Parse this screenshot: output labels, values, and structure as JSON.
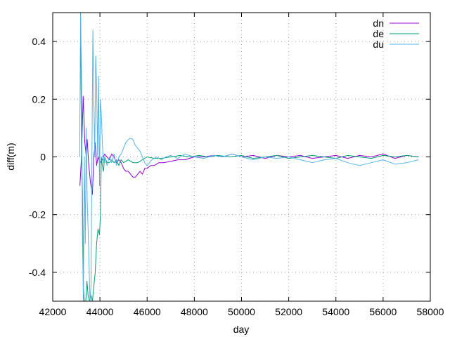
{
  "chart_data": {
    "type": "line",
    "title": "",
    "xlabel": "day",
    "ylabel": "diff(m)",
    "xlim": [
      42000,
      58000
    ],
    "ylim": [
      -0.5,
      0.5
    ],
    "xticks": [
      42000,
      44000,
      46000,
      48000,
      50000,
      52000,
      54000,
      56000,
      58000
    ],
    "xtick_labels": [
      "42000",
      "44000",
      "46000",
      "48000",
      "50000",
      "52000",
      "54000",
      "56000",
      "58000"
    ],
    "yticks": [
      -0.4,
      -0.2,
      0,
      0.2,
      0.4
    ],
    "ytick_labels": [
      "-0.4",
      "-0.2",
      "0",
      "0.2",
      "0.4"
    ],
    "grid": true,
    "legend_position": "top-right",
    "series": [
      {
        "name": "dn",
        "color": "#9400d3",
        "points": [
          [
            43150,
            -0.1
          ],
          [
            43220,
            0.0
          ],
          [
            43290,
            0.21
          ],
          [
            43360,
            0.05
          ],
          [
            43420,
            0.0
          ],
          [
            43460,
            0.06
          ],
          [
            43520,
            -0.02
          ],
          [
            43600,
            -0.09
          ],
          [
            43680,
            -0.13
          ],
          [
            43740,
            0.0
          ],
          [
            43800,
            0.05
          ],
          [
            43860,
            -0.03
          ],
          [
            43920,
            0.0
          ],
          [
            44000,
            -0.02
          ],
          [
            44100,
            -0.01
          ],
          [
            44200,
            0.01
          ],
          [
            44300,
            0.0
          ],
          [
            44400,
            -0.01
          ],
          [
            44500,
            0.01
          ],
          [
            44600,
            0.0
          ],
          [
            44700,
            -0.02
          ],
          [
            44800,
            -0.01
          ],
          [
            44900,
            -0.02
          ],
          [
            45000,
            -0.04
          ],
          [
            45100,
            -0.05
          ],
          [
            45200,
            -0.05
          ],
          [
            45300,
            -0.06
          ],
          [
            45400,
            -0.07
          ],
          [
            45500,
            -0.07
          ],
          [
            45600,
            -0.06
          ],
          [
            45700,
            -0.05
          ],
          [
            45800,
            -0.06
          ],
          [
            45900,
            -0.04
          ],
          [
            46000,
            -0.04
          ],
          [
            46150,
            -0.03
          ],
          [
            46300,
            -0.03
          ],
          [
            46500,
            -0.02
          ],
          [
            46700,
            -0.02
          ],
          [
            47000,
            -0.015
          ],
          [
            47300,
            -0.01
          ],
          [
            47600,
            -0.01
          ],
          [
            48000,
            0.0
          ],
          [
            48400,
            0.0
          ],
          [
            48800,
            0.005
          ],
          [
            49200,
            0.0
          ],
          [
            49600,
            0.01
          ],
          [
            50000,
            0.0
          ],
          [
            50500,
            0.005
          ],
          [
            51000,
            -0.005
          ],
          [
            51500,
            0.005
          ],
          [
            52000,
            0.0
          ],
          [
            52500,
            0.005
          ],
          [
            53000,
            -0.005
          ],
          [
            53500,
            0.0
          ],
          [
            54000,
            0.005
          ],
          [
            54500,
            -0.005
          ],
          [
            55000,
            0.005
          ],
          [
            55500,
            0.0
          ],
          [
            56000,
            0.01
          ],
          [
            56500,
            -0.005
          ],
          [
            57000,
            0.005
          ],
          [
            57500,
            0.0
          ]
        ]
      },
      {
        "name": "de",
        "color": "#009e73",
        "points": [
          [
            43180,
            0.5
          ],
          [
            43220,
            0.0
          ],
          [
            43260,
            -0.12
          ],
          [
            43300,
            -0.45
          ],
          [
            43340,
            -0.5
          ],
          [
            43400,
            -0.5
          ],
          [
            43450,
            -0.43
          ],
          [
            43500,
            -0.48
          ],
          [
            43560,
            -0.5
          ],
          [
            43620,
            -0.48
          ],
          [
            43680,
            -0.5
          ],
          [
            43740,
            -0.45
          ],
          [
            43800,
            -0.4
          ],
          [
            43860,
            -0.3
          ],
          [
            43920,
            -0.25
          ],
          [
            43980,
            -0.27
          ],
          [
            44020,
            -0.2
          ],
          [
            44060,
            0.0
          ],
          [
            44100,
            -0.03
          ],
          [
            44150,
            -0.05
          ],
          [
            44200,
            0.0
          ],
          [
            44300,
            -0.02
          ],
          [
            44400,
            -0.02
          ],
          [
            44500,
            -0.01
          ],
          [
            44600,
            -0.02
          ],
          [
            44700,
            -0.01
          ],
          [
            44800,
            -0.03
          ],
          [
            44900,
            -0.01
          ],
          [
            45000,
            -0.02
          ],
          [
            45200,
            -0.01
          ],
          [
            45400,
            -0.02
          ],
          [
            45600,
            -0.02
          ],
          [
            45800,
            -0.01
          ],
          [
            46000,
            0.0
          ],
          [
            46300,
            -0.005
          ],
          [
            46600,
            -0.005
          ],
          [
            47000,
            0.0
          ],
          [
            47400,
            0.005
          ],
          [
            47800,
            0.0
          ],
          [
            48200,
            0.005
          ],
          [
            48600,
            0.0
          ],
          [
            49000,
            0.005
          ],
          [
            49500,
            0.0
          ],
          [
            50000,
            0.005
          ],
          [
            50500,
            -0.005
          ],
          [
            51000,
            0.0
          ],
          [
            51500,
            0.005
          ],
          [
            52000,
            -0.005
          ],
          [
            52500,
            0.0
          ],
          [
            53000,
            0.005
          ],
          [
            53500,
            0.0
          ],
          [
            54000,
            -0.005
          ],
          [
            54500,
            0.005
          ],
          [
            55000,
            0.0
          ],
          [
            55500,
            -0.005
          ],
          [
            56000,
            0.005
          ],
          [
            56500,
            0.0
          ],
          [
            57000,
            0.005
          ],
          [
            57500,
            0.0
          ]
        ]
      },
      {
        "name": "du",
        "color": "#56b4e9",
        "points": [
          [
            43140,
            0.0
          ],
          [
            43180,
            0.5
          ],
          [
            43220,
            0.3
          ],
          [
            43260,
            -0.3
          ],
          [
            43300,
            -0.5
          ],
          [
            43340,
            0.0
          ],
          [
            43380,
            -0.3
          ],
          [
            43420,
            0.1
          ],
          [
            43460,
            -0.15
          ],
          [
            43500,
            -0.25
          ],
          [
            43540,
            -0.38
          ],
          [
            43580,
            -0.5
          ],
          [
            43620,
            -0.45
          ],
          [
            43660,
            0.0
          ],
          [
            43700,
            0.44
          ],
          [
            43740,
            0.2
          ],
          [
            43780,
            0.0
          ],
          [
            43820,
            0.35
          ],
          [
            43860,
            0.25
          ],
          [
            43900,
            0.0
          ],
          [
            43940,
            0.28
          ],
          [
            43980,
            -0.1
          ],
          [
            44020,
            0.2
          ],
          [
            44060,
            0.15
          ],
          [
            44100,
            0.05
          ],
          [
            44150,
            -0.02
          ],
          [
            44200,
            0.0
          ],
          [
            44300,
            -0.03
          ],
          [
            44400,
            0.0
          ],
          [
            44500,
            -0.02
          ],
          [
            44600,
            0.01
          ],
          [
            44700,
            -0.03
          ],
          [
            44800,
            0.0
          ],
          [
            44900,
            0.01
          ],
          [
            45000,
            0.03
          ],
          [
            45100,
            0.05
          ],
          [
            45200,
            0.06
          ],
          [
            45300,
            0.065
          ],
          [
            45400,
            0.06
          ],
          [
            45500,
            0.04
          ],
          [
            45600,
            0.03
          ],
          [
            45700,
            0.02
          ],
          [
            45800,
            0.0
          ],
          [
            45900,
            -0.02
          ],
          [
            46000,
            -0.03
          ],
          [
            46200,
            -0.01
          ],
          [
            46400,
            0.0
          ],
          [
            46600,
            -0.01
          ],
          [
            46800,
            0.0
          ],
          [
            47000,
            0.005
          ],
          [
            47300,
            -0.005
          ],
          [
            47600,
            0.01
          ],
          [
            48000,
            0.0
          ],
          [
            48400,
            -0.005
          ],
          [
            48800,
            0.005
          ],
          [
            49200,
            0.0
          ],
          [
            49600,
            0.01
          ],
          [
            50000,
            0.0
          ],
          [
            50500,
            -0.01
          ],
          [
            51000,
            0.0
          ],
          [
            51500,
            -0.005
          ],
          [
            52000,
            0.0
          ],
          [
            52500,
            -0.01
          ],
          [
            53000,
            -0.02
          ],
          [
            53500,
            -0.01
          ],
          [
            54000,
            -0.005
          ],
          [
            54500,
            -0.02
          ],
          [
            55000,
            -0.03
          ],
          [
            55500,
            -0.02
          ],
          [
            56000,
            -0.01
          ],
          [
            56500,
            -0.025
          ],
          [
            57000,
            -0.02
          ],
          [
            57500,
            -0.01
          ]
        ]
      }
    ]
  }
}
